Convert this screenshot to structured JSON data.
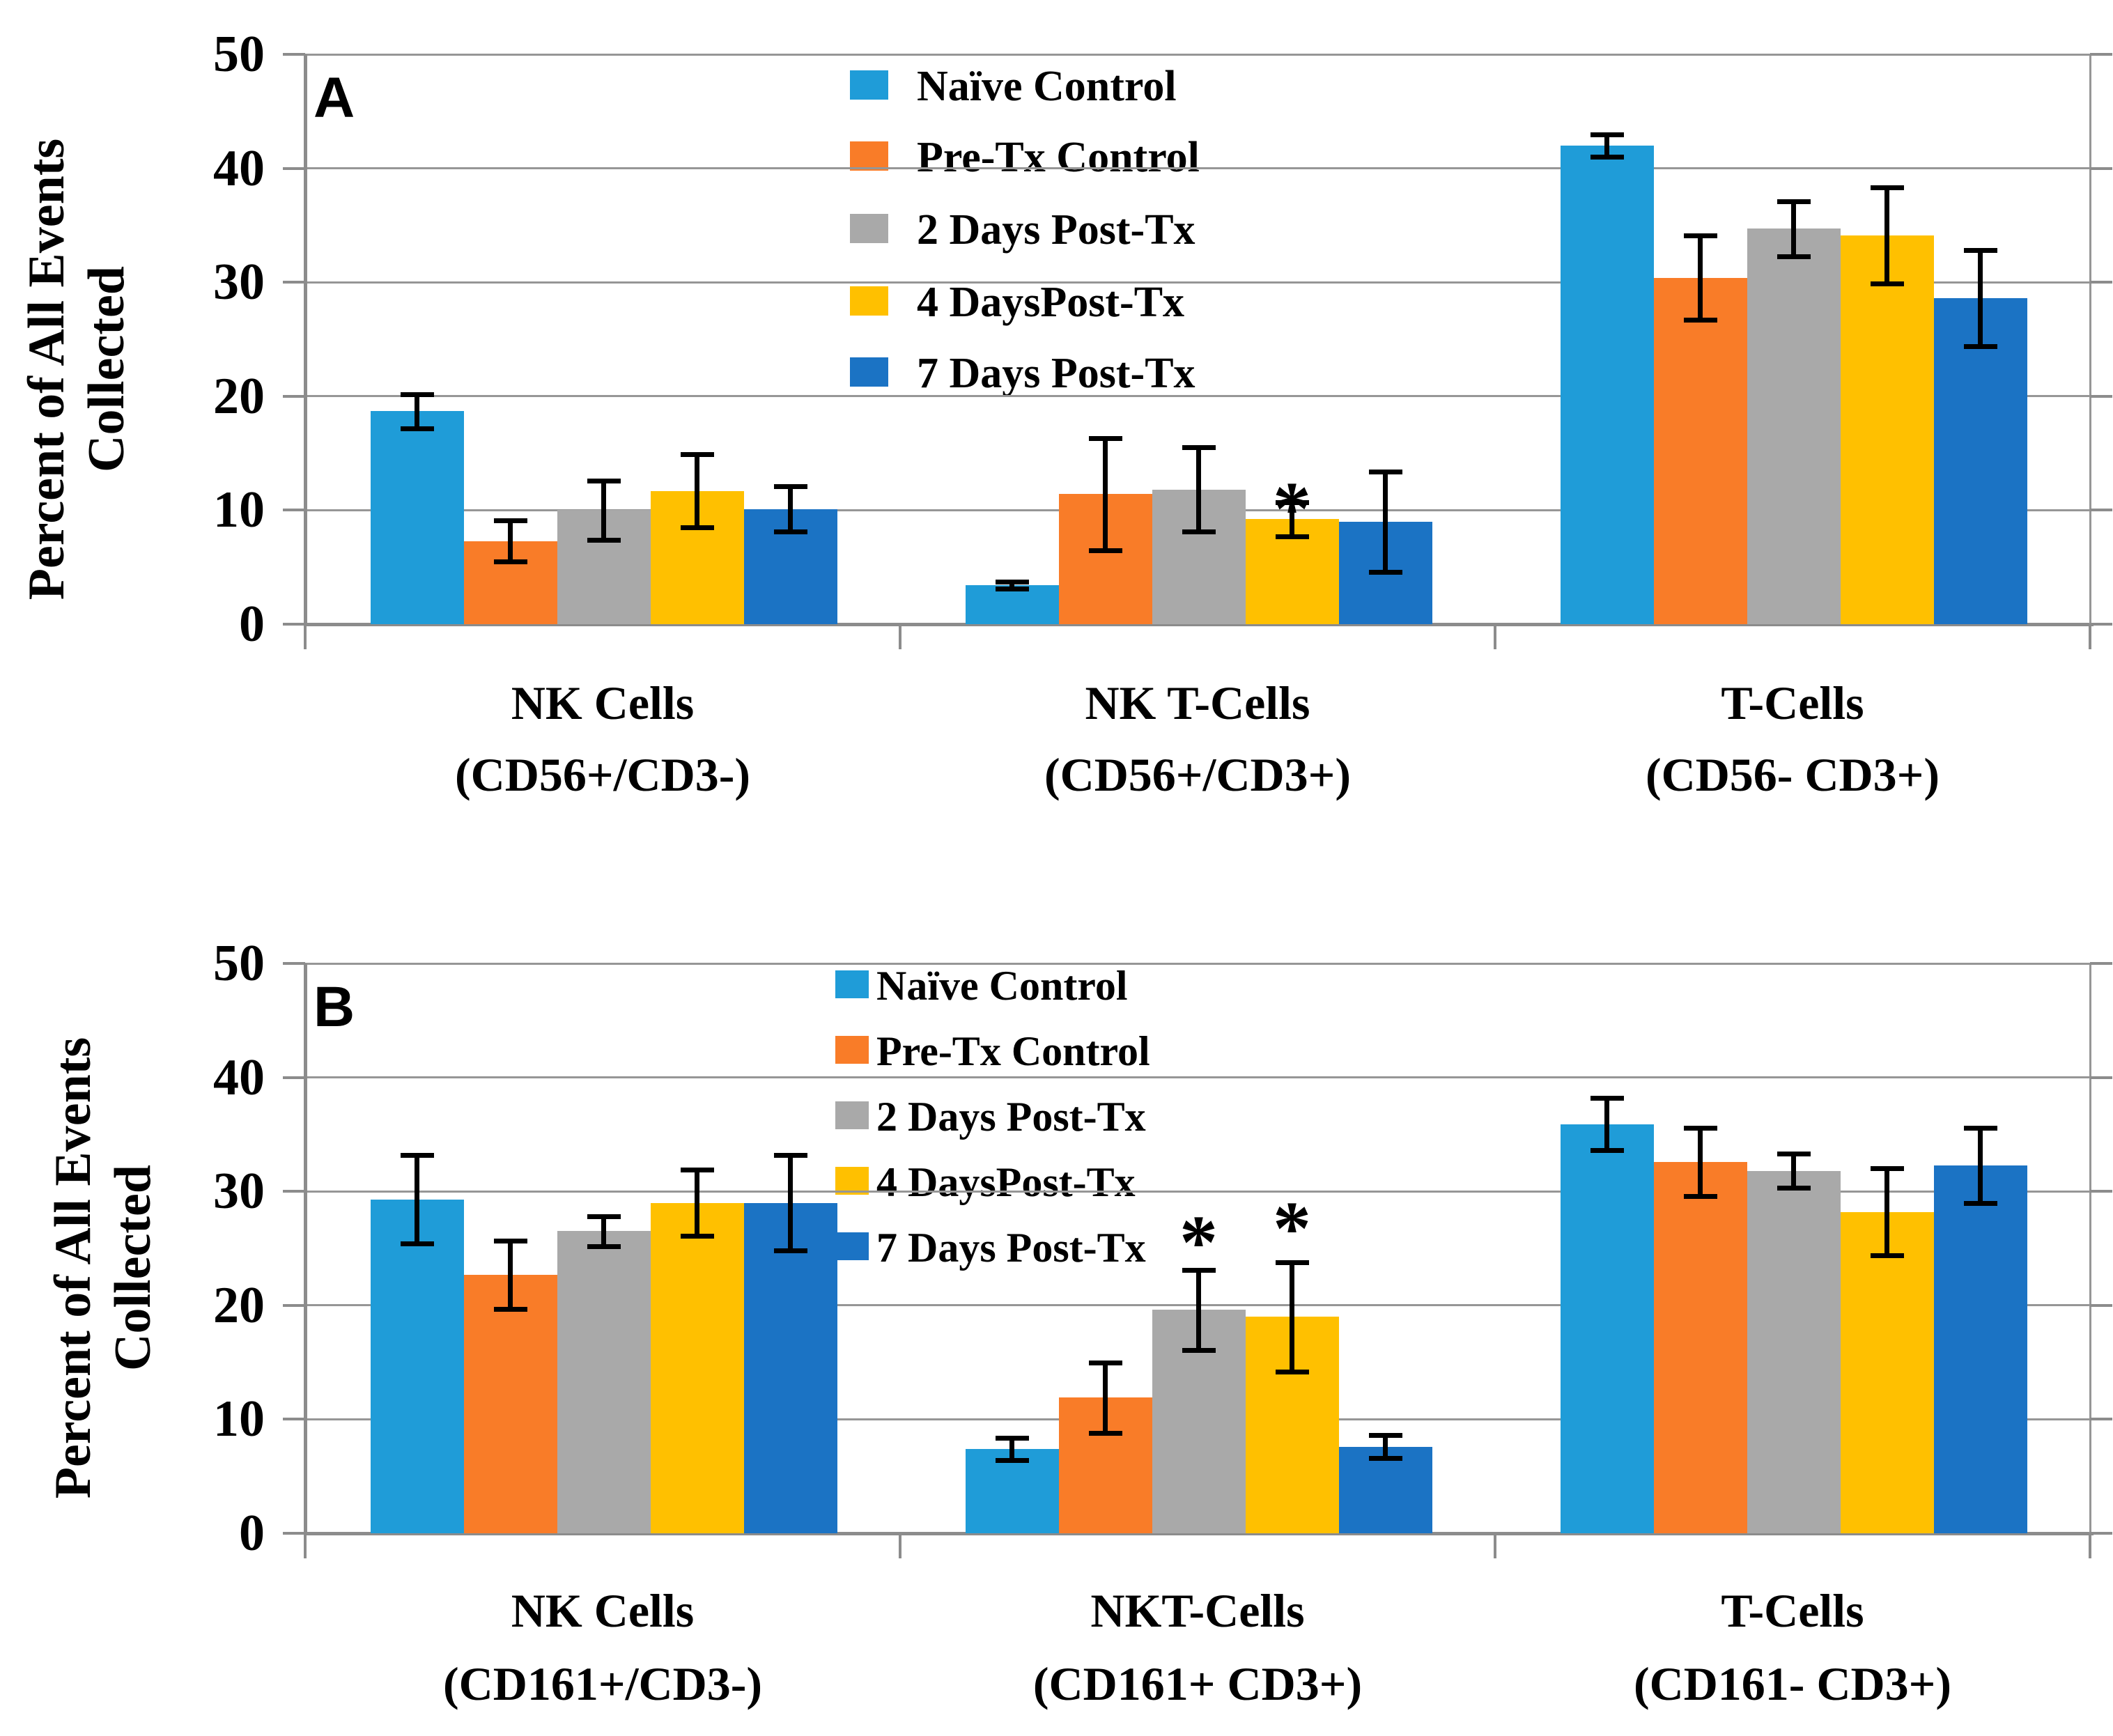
{
  "figure": {
    "background": "#FFFFFF",
    "y_axis_title": "Percent of All Events\nCollected",
    "y_ticks": [
      "0",
      "10",
      "20",
      "30",
      "40",
      "50"
    ],
    "legend_labels": [
      "Naïve Control",
      "Pre-Tx Control",
      "2 Days Post-Tx",
      "4 DaysPost-Tx",
      "7 Days Post-Tx"
    ],
    "series_colors": [
      "#1F9CD8",
      "#F97C28",
      "#A9A9A9",
      "#FFC000",
      "#1B73C4"
    ],
    "grid_color": "#969696",
    "axis_color": "#8C8C8C",
    "error_bar_color": "#000000",
    "annotation_symbol": "*"
  },
  "chart_data": [
    {
      "type": "bar",
      "panel_label": "A",
      "ylabel": "Percent of All Events Collected",
      "ylim": [
        0,
        50
      ],
      "ytick_step": 10,
      "grid": true,
      "legend_position": "inside-top-center",
      "categories": [
        [
          "NK Cells",
          "(CD56+/CD3-)"
        ],
        [
          "NK T-Cells",
          "(CD56+/CD3+)"
        ],
        [
          "T-Cells",
          "(CD56- CD3+)"
        ]
      ],
      "series": [
        {
          "name": "Naïve Control",
          "values": [
            18.7,
            3.4,
            42.0
          ],
          "errors": [
            1.5,
            0.3,
            1.0
          ]
        },
        {
          "name": "Pre-Tx Control",
          "values": [
            7.3,
            11.4,
            30.4
          ],
          "errors": [
            1.8,
            4.9,
            3.7
          ]
        },
        {
          "name": "2 Days Post-Tx",
          "values": [
            10.0,
            11.8,
            34.7
          ],
          "errors": [
            2.6,
            3.7,
            2.4
          ]
        },
        {
          "name": "4 Days Post-Tx",
          "values": [
            11.7,
            9.2,
            34.1
          ],
          "errors": [
            3.2,
            1.5,
            4.2
          ]
        },
        {
          "name": "7 Days Post-Tx",
          "values": [
            10.1,
            9.0,
            28.6
          ],
          "errors": [
            2.0,
            4.4,
            4.2
          ]
        }
      ],
      "annotations": [
        {
          "text": "*",
          "category": 1,
          "series": 3,
          "value": 10.6
        }
      ]
    },
    {
      "type": "bar",
      "panel_label": "B",
      "ylabel": "Percent of All Events Collected",
      "ylim": [
        0,
        50
      ],
      "ytick_step": 10,
      "grid": true,
      "legend_position": "inside-top-center",
      "categories": [
        [
          "NK Cells",
          "(CD161+/CD3-)"
        ],
        [
          "NKT-Cells",
          "(CD161+ CD3+)"
        ],
        [
          "T-Cells",
          "(CD161- CD3+)"
        ]
      ],
      "series": [
        {
          "name": "Naïve Control",
          "values": [
            29.3,
            7.4,
            35.9
          ],
          "errors": [
            3.9,
            1.0,
            2.3
          ]
        },
        {
          "name": "Pre-Tx Control",
          "values": [
            22.7,
            11.9,
            32.6
          ],
          "errors": [
            3.0,
            3.1,
            3.0
          ]
        },
        {
          "name": "2 Days Post-Tx",
          "values": [
            26.5,
            19.6,
            31.8
          ],
          "errors": [
            1.3,
            3.5,
            1.5
          ]
        },
        {
          "name": "4 Days Post-Tx",
          "values": [
            29.0,
            19.0,
            28.2
          ],
          "errors": [
            2.9,
            4.8,
            3.8
          ]
        },
        {
          "name": "7 Days Post-Tx",
          "values": [
            29.0,
            7.6,
            32.3
          ],
          "errors": [
            4.2,
            1.0,
            3.3
          ]
        }
      ],
      "annotations": [
        {
          "text": "*",
          "category": 1,
          "series": 2,
          "value": 26.0
        },
        {
          "text": "*",
          "category": 1,
          "series": 3,
          "value": 27.2
        }
      ]
    }
  ]
}
